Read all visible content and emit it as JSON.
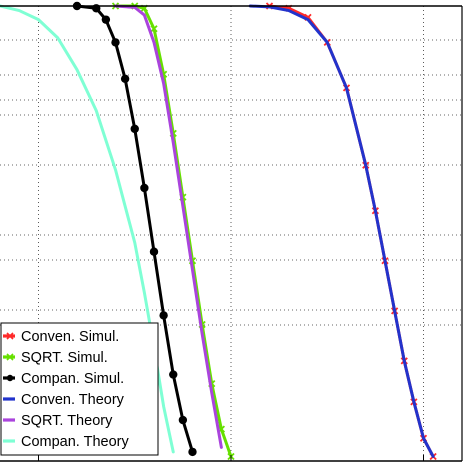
{
  "chart_data": {
    "type": "line",
    "title": "",
    "xlabel": "",
    "ylabel": "",
    "xlim": [
      0,
      24
    ],
    "ylim": [
      0,
      1
    ],
    "xticks": [
      2,
      12,
      22
    ],
    "grid": true,
    "legend_position": "bottom-left",
    "series": [
      {
        "name": "Conven. Simul.",
        "color": "#ff2a2a",
        "marker": "x",
        "style": "solid",
        "x": [
          14,
          15,
          16,
          17,
          18,
          19,
          19.5,
          20,
          20.5,
          21,
          21.5,
          22,
          22.5
        ],
        "y": [
          1,
          0.995,
          0.975,
          0.92,
          0.82,
          0.65,
          0.55,
          0.44,
          0.33,
          0.22,
          0.13,
          0.05,
          0.01
        ]
      },
      {
        "name": "SQRT. Simul.",
        "color": "#66e000",
        "marker": "x",
        "style": "solid",
        "x": [
          6,
          7,
          7.5,
          8,
          8.5,
          9,
          9.5,
          10,
          10.5,
          11,
          11.5,
          12
        ],
        "y": [
          1,
          1,
          0.995,
          0.95,
          0.85,
          0.72,
          0.58,
          0.44,
          0.3,
          0.17,
          0.07,
          0.01
        ]
      },
      {
        "name": "Compan. Simul.",
        "color": "#000000",
        "marker": "o",
        "style": "solid",
        "x": [
          4,
          5,
          5.5,
          6,
          6.5,
          7,
          7.5,
          8,
          8.5,
          9,
          9.5,
          10
        ],
        "y": [
          1,
          0.995,
          0.97,
          0.92,
          0.84,
          0.73,
          0.6,
          0.46,
          0.32,
          0.19,
          0.09,
          0.02
        ]
      },
      {
        "name": "Conven. Theory",
        "color": "#2233cc",
        "marker": "none",
        "style": "solid",
        "x": [
          13,
          14,
          15,
          16,
          17,
          18,
          19,
          19.5,
          20,
          20.5,
          21,
          21.5,
          22,
          22.5
        ],
        "y": [
          1,
          0.998,
          0.99,
          0.97,
          0.92,
          0.82,
          0.65,
          0.55,
          0.44,
          0.33,
          0.22,
          0.13,
          0.05,
          0.01
        ]
      },
      {
        "name": "SQRT. Theory",
        "color": "#aa44dd",
        "marker": "none",
        "style": "solid",
        "x": [
          6,
          7,
          7.5,
          8,
          8.5,
          9,
          9.5,
          10,
          10.5,
          11,
          11.5
        ],
        "y": [
          1,
          0.997,
          0.98,
          0.92,
          0.83,
          0.7,
          0.56,
          0.42,
          0.28,
          0.15,
          0.03
        ]
      },
      {
        "name": "Compan. Theory",
        "color": "#7fffd4",
        "marker": "none",
        "style": "solid",
        "x": [
          0,
          1,
          2,
          3,
          4,
          5,
          6,
          7,
          7.5,
          8,
          8.5,
          9
        ],
        "y": [
          1,
          0.99,
          0.97,
          0.93,
          0.86,
          0.77,
          0.64,
          0.48,
          0.37,
          0.25,
          0.12,
          0.02
        ]
      }
    ]
  }
}
